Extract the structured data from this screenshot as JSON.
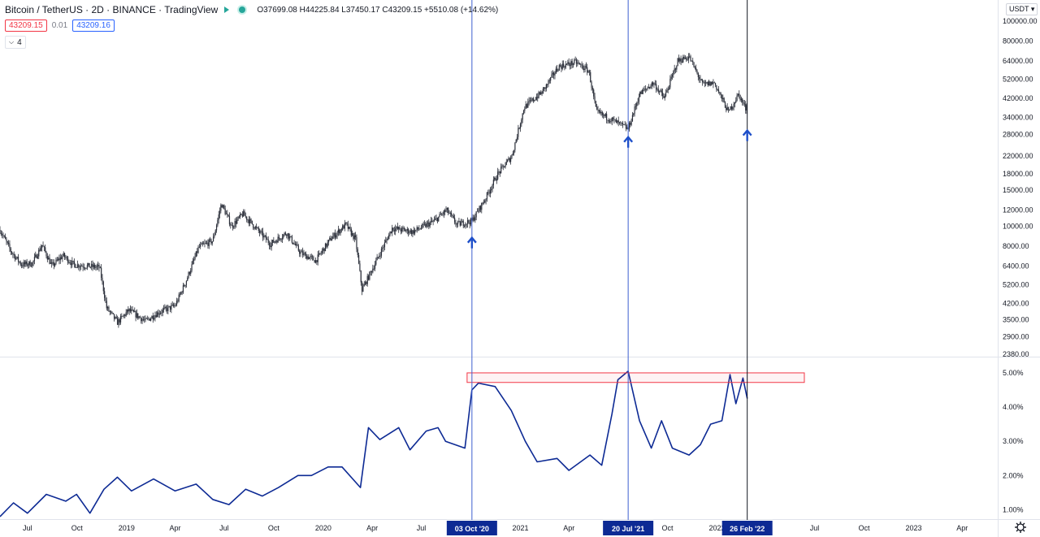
{
  "header": {
    "title": "Bitcoin / TetherUS · 2D · BINANCE · TradingView",
    "ohlc": "O37699.08 H44225.84 L37450.17 C43209.15 +5510.08 (+14.62%)",
    "bid": "43209.15",
    "spread": "0.01",
    "ask": "43209.16",
    "indicator_count": "4",
    "currency_button": "USDT"
  },
  "colors": {
    "up_arrow": "#1e4fc9",
    "indicator_line": "#0d2a94",
    "highlight_box": "#f23645",
    "date_label_bg": "#0d2a94"
  },
  "chart_data": [
    {
      "type": "candlestick",
      "scale": "log",
      "y_tick_labels": [
        "100000.00",
        "80000.00",
        "64000.00",
        "52000.00",
        "42000.00",
        "34000.00",
        "28000.00",
        "22000.00",
        "18000.00",
        "15000.00",
        "12000.00",
        "10000.00",
        "8000.00",
        "6400.00",
        "5200.00",
        "4200.00",
        "3500.00",
        "2900.00",
        "2380.00"
      ],
      "y_ticks": [
        100000,
        80000,
        64000,
        52000,
        42000,
        34000,
        28000,
        22000,
        18000,
        15000,
        12000,
        10000,
        8000,
        6400,
        5200,
        4200,
        3500,
        2900,
        2380
      ],
      "ylim": [
        2380,
        100000
      ],
      "x_tick_labels": [
        "Jul",
        "Oct",
        "2019",
        "Apr",
        "Jul",
        "Oct",
        "2020",
        "Apr",
        "Jul",
        "2021",
        "Apr",
        "Oct",
        "2022",
        "Jul",
        "Oct",
        "2023",
        "Apr"
      ],
      "x_ticks": [
        "2018-07-01",
        "2018-10-01",
        "2019-01-01",
        "2019-04-01",
        "2019-07-01",
        "2019-10-01",
        "2020-01-01",
        "2020-04-01",
        "2020-07-01",
        "2021-01-01",
        "2021-04-01",
        "2021-10-01",
        "2022-01-01",
        "2022-07-01",
        "2022-10-01",
        "2023-01-01",
        "2023-04-01"
      ],
      "xlim": [
        "2018-05-11",
        "2023-06-06"
      ],
      "close_path": [
        [
          "2018-05-11",
          9600
        ],
        [
          "2018-06-01",
          7500
        ],
        [
          "2018-06-20",
          6500
        ],
        [
          "2018-07-10",
          6600
        ],
        [
          "2018-07-28",
          8100
        ],
        [
          "2018-08-15",
          6400
        ],
        [
          "2018-09-05",
          7200
        ],
        [
          "2018-09-25",
          6500
        ],
        [
          "2018-10-20",
          6400
        ],
        [
          "2018-11-12",
          6300
        ],
        [
          "2018-11-25",
          4000
        ],
        [
          "2018-12-15",
          3400
        ],
        [
          "2019-01-05",
          3900
        ],
        [
          "2019-02-05",
          3450
        ],
        [
          "2019-03-01",
          3800
        ],
        [
          "2019-04-01",
          4100
        ],
        [
          "2019-04-20",
          5300
        ],
        [
          "2019-05-15",
          7900
        ],
        [
          "2019-06-10",
          8500
        ],
        [
          "2019-06-26",
          12900
        ],
        [
          "2019-07-15",
          10000
        ],
        [
          "2019-08-05",
          11500
        ],
        [
          "2019-09-01",
          9600
        ],
        [
          "2019-09-25",
          8200
        ],
        [
          "2019-10-25",
          9300
        ],
        [
          "2019-11-20",
          7400
        ],
        [
          "2019-12-18",
          6800
        ],
        [
          "2020-01-15",
          8700
        ],
        [
          "2020-02-12",
          10200
        ],
        [
          "2020-03-01",
          8600
        ],
        [
          "2020-03-13",
          4900
        ],
        [
          "2020-04-10",
          6900
        ],
        [
          "2020-05-08",
          9800
        ],
        [
          "2020-06-15",
          9400
        ],
        [
          "2020-07-25",
          10600
        ],
        [
          "2020-08-17",
          12000
        ],
        [
          "2020-09-05",
          10200
        ],
        [
          "2020-10-03",
          10600
        ],
        [
          "2020-10-27",
          13500
        ],
        [
          "2020-11-20",
          18000
        ],
        [
          "2020-12-16",
          22000
        ],
        [
          "2021-01-08",
          38000
        ],
        [
          "2021-02-10",
          45000
        ],
        [
          "2021-03-13",
          60000
        ],
        [
          "2021-04-14",
          63000
        ],
        [
          "2021-05-08",
          57000
        ],
        [
          "2021-05-22",
          36000
        ],
        [
          "2021-06-20",
          33000
        ],
        [
          "2021-07-20",
          29800
        ],
        [
          "2021-08-10",
          44000
        ],
        [
          "2021-09-05",
          50000
        ],
        [
          "2021-09-25",
          42000
        ],
        [
          "2021-10-20",
          64000
        ],
        [
          "2021-11-10",
          67000
        ],
        [
          "2021-12-05",
          49000
        ],
        [
          "2021-12-27",
          50000
        ],
        [
          "2022-01-22",
          36000
        ],
        [
          "2022-02-10",
          44000
        ],
        [
          "2022-02-24",
          37000
        ],
        [
          "2022-02-26",
          43209
        ]
      ]
    },
    {
      "type": "line",
      "y_tick_labels": [
        "5.00%",
        "4.00%",
        "3.00%",
        "2.00%",
        "1.00%"
      ],
      "y_ticks": [
        5,
        4,
        3,
        2,
        1
      ],
      "ylim": [
        0.75,
        5.45
      ],
      "points": [
        [
          "2018-05-11",
          0.8
        ],
        [
          "2018-06-05",
          1.2
        ],
        [
          "2018-07-01",
          0.9
        ],
        [
          "2018-08-05",
          1.45
        ],
        [
          "2018-09-10",
          1.25
        ],
        [
          "2018-09-30",
          1.45
        ],
        [
          "2018-10-25",
          0.9
        ],
        [
          "2018-11-20",
          1.6
        ],
        [
          "2018-12-15",
          1.95
        ],
        [
          "2019-01-10",
          1.55
        ],
        [
          "2019-02-20",
          1.9
        ],
        [
          "2019-04-01",
          1.55
        ],
        [
          "2019-05-10",
          1.75
        ],
        [
          "2019-06-10",
          1.3
        ],
        [
          "2019-07-10",
          1.15
        ],
        [
          "2019-08-10",
          1.6
        ],
        [
          "2019-09-10",
          1.4
        ],
        [
          "2019-10-10",
          1.65
        ],
        [
          "2019-11-15",
          2.0
        ],
        [
          "2019-12-10",
          2.0
        ],
        [
          "2020-01-10",
          2.25
        ],
        [
          "2020-02-05",
          2.25
        ],
        [
          "2020-03-10",
          1.65
        ],
        [
          "2020-03-25",
          3.4
        ],
        [
          "2020-04-15",
          3.05
        ],
        [
          "2020-05-20",
          3.4
        ],
        [
          "2020-06-10",
          2.75
        ],
        [
          "2020-07-10",
          3.3
        ],
        [
          "2020-08-01",
          3.4
        ],
        [
          "2020-08-15",
          3.0
        ],
        [
          "2020-09-20",
          2.8
        ],
        [
          "2020-10-03",
          4.5
        ],
        [
          "2020-10-15",
          4.7
        ],
        [
          "2020-11-15",
          4.6
        ],
        [
          "2020-12-15",
          3.9
        ],
        [
          "2021-01-10",
          3.0
        ],
        [
          "2021-02-01",
          2.4
        ],
        [
          "2021-03-10",
          2.5
        ],
        [
          "2021-04-01",
          2.15
        ],
        [
          "2021-05-10",
          2.6
        ],
        [
          "2021-06-01",
          2.3
        ],
        [
          "2021-06-20",
          3.8
        ],
        [
          "2021-07-01",
          4.8
        ],
        [
          "2021-07-20",
          5.05
        ],
        [
          "2021-08-10",
          3.6
        ],
        [
          "2021-09-01",
          2.8
        ],
        [
          "2021-09-20",
          3.6
        ],
        [
          "2021-10-10",
          2.8
        ],
        [
          "2021-11-10",
          2.6
        ],
        [
          "2021-12-01",
          2.9
        ],
        [
          "2021-12-20",
          3.5
        ],
        [
          "2022-01-10",
          3.6
        ],
        [
          "2022-01-25",
          4.95
        ],
        [
          "2022-02-05",
          4.1
        ],
        [
          "2022-02-18",
          4.85
        ],
        [
          "2022-02-26",
          4.25
        ]
      ]
    }
  ],
  "annotations": {
    "vertical_lines": [
      {
        "date": "2020-10-03",
        "label": "03 Oct '20"
      },
      {
        "date": "2021-07-20",
        "label": "20 Jul '21"
      },
      {
        "date": "2022-02-26",
        "label": "26 Feb '22"
      }
    ],
    "up_arrows": [
      {
        "date": "2020-10-03",
        "price": 8400
      },
      {
        "date": "2021-07-20",
        "price": 26000
      },
      {
        "date": "2022-02-26",
        "price": 28000
      }
    ],
    "highlight_box": {
      "date_from": "2020-09-24",
      "date_to": "2022-06-12",
      "value_from": 4.72,
      "value_to": 5.0
    }
  }
}
